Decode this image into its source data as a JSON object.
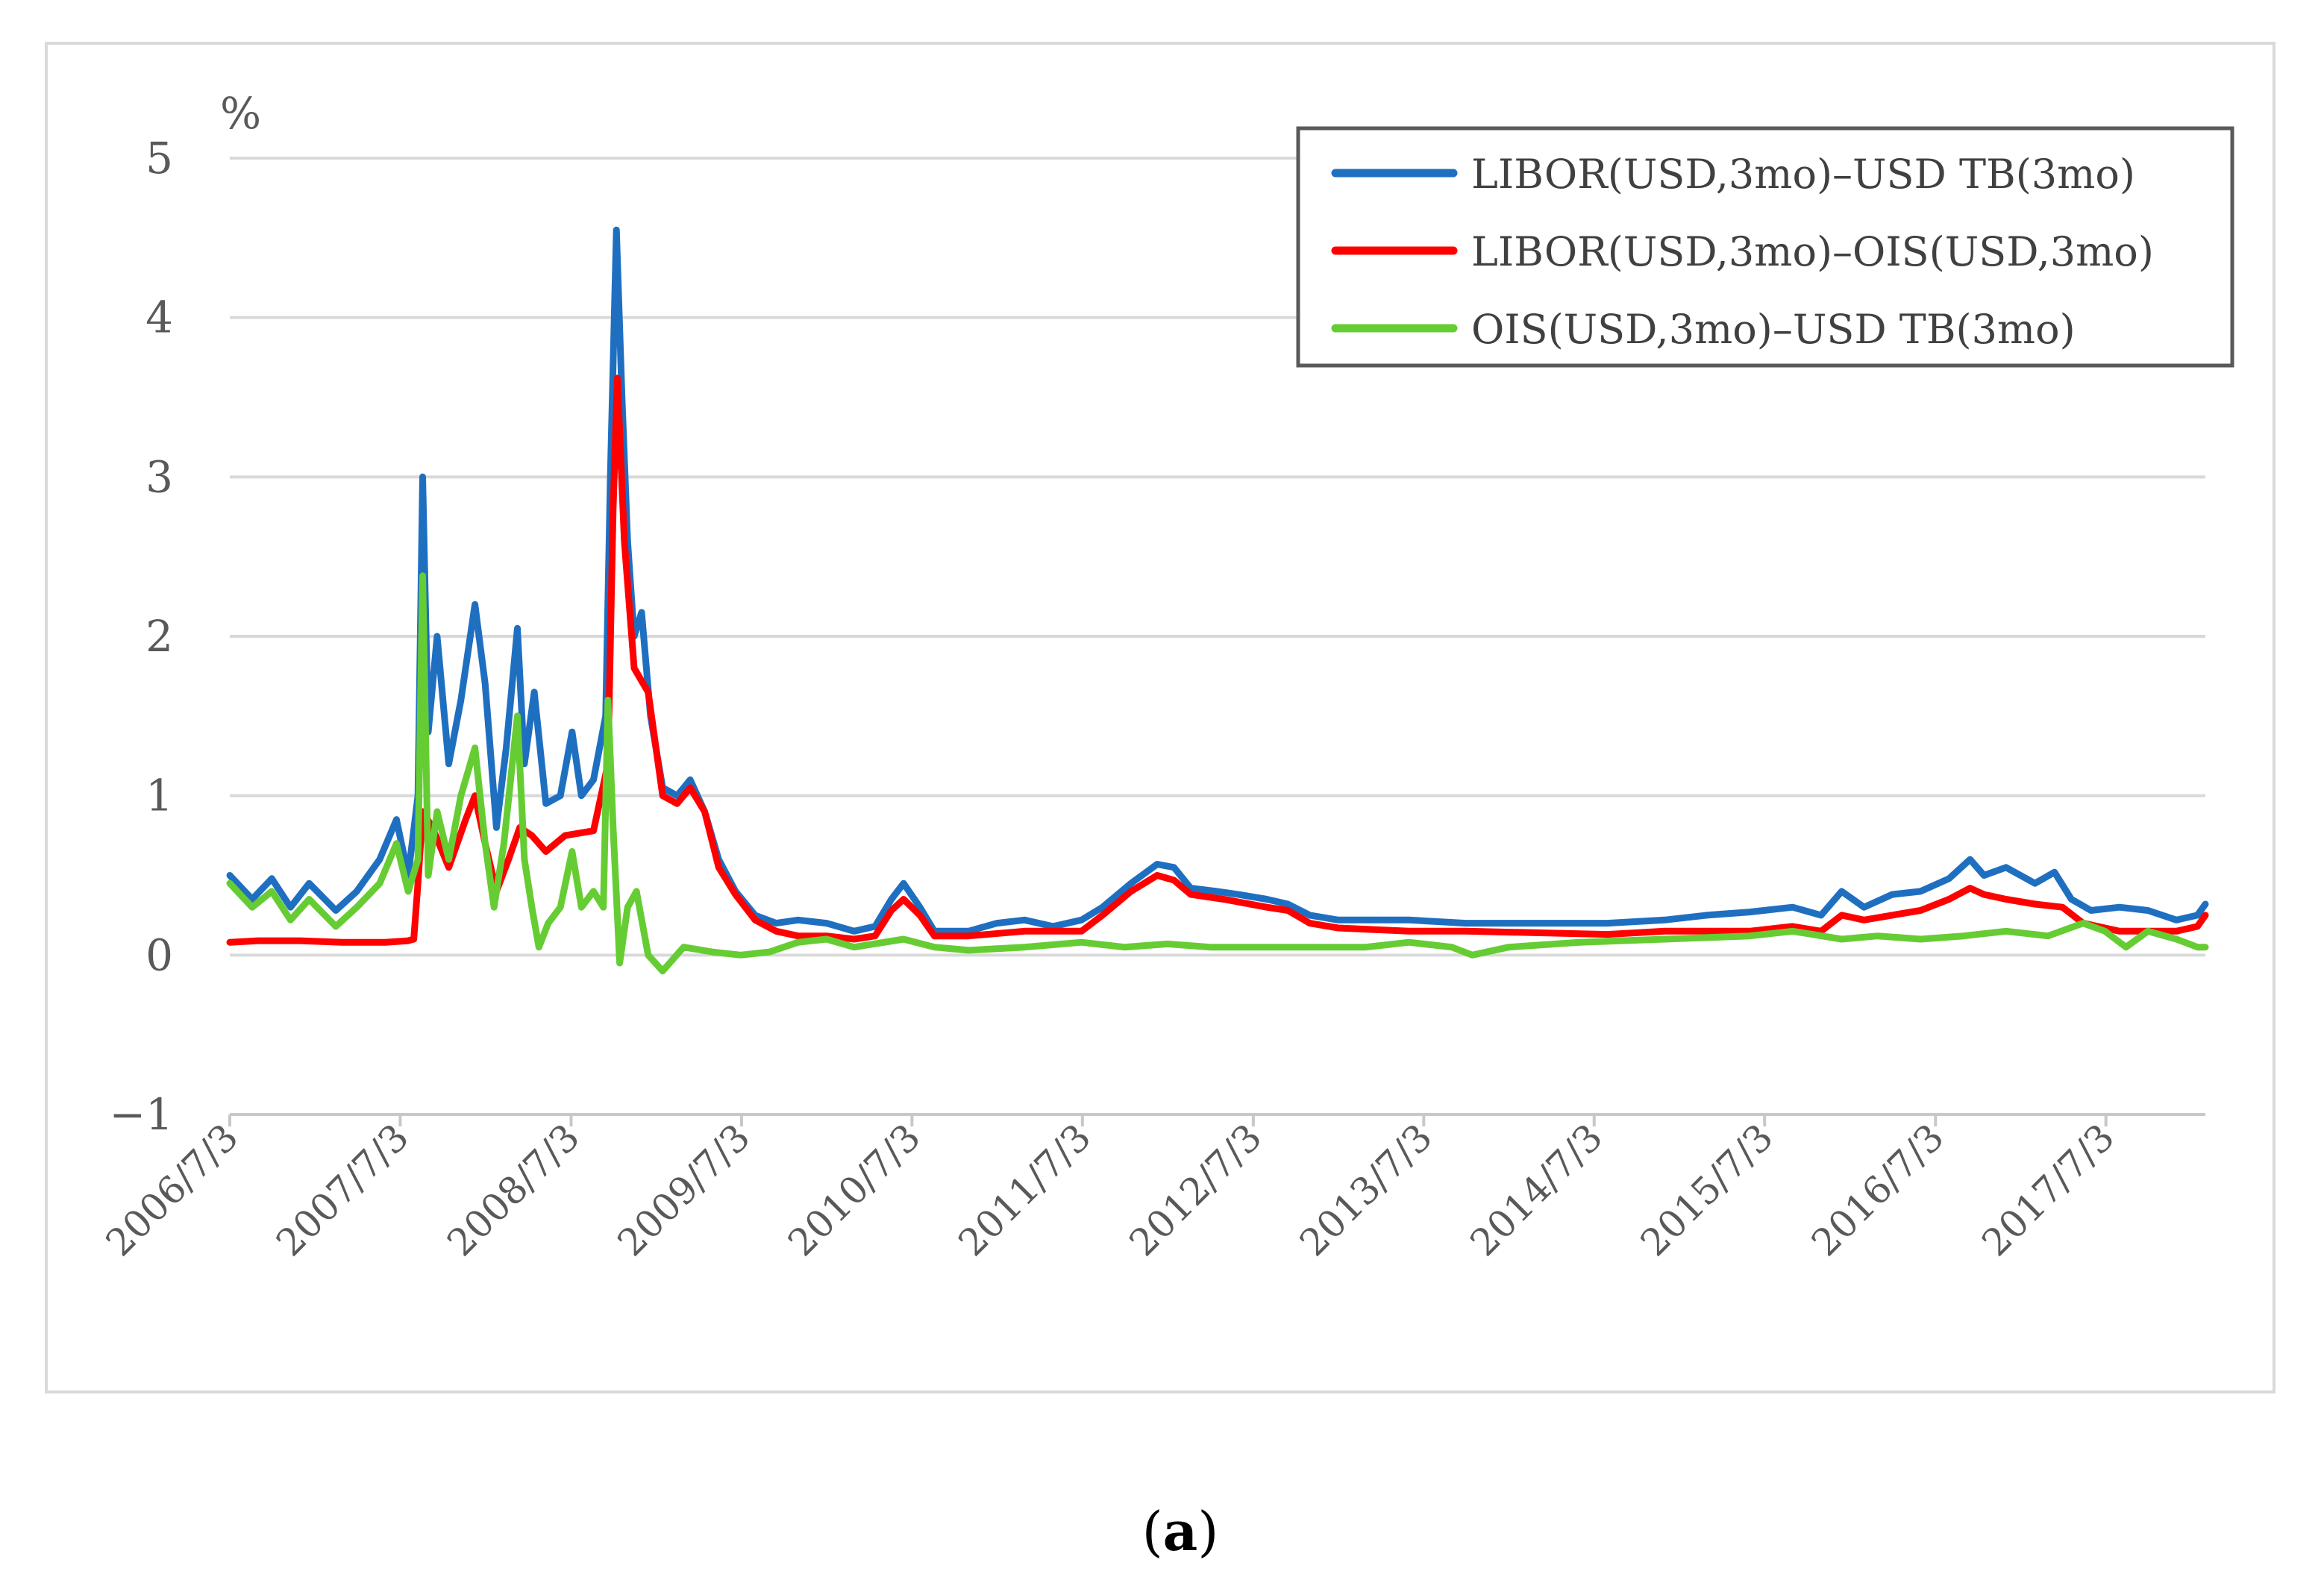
{
  "caption": {
    "open": "(",
    "letter": "a",
    "close": ")"
  },
  "chart_data": {
    "type": "line",
    "ylabel": "%",
    "ylim": [
      -1,
      5
    ],
    "yticks": [
      "5",
      "4",
      "3",
      "2",
      "1",
      "0",
      "−1"
    ],
    "xticks": [
      "2006/7/3",
      "2007/7/3",
      "2008/7/3",
      "2009/7/3",
      "2010/7/3",
      "2011/7/3",
      "2012/7/3",
      "2013/7/3",
      "2014/7/3",
      "2015/7/3",
      "2016/7/3",
      "2017/7/3"
    ],
    "xrange": [
      "2006/7/3",
      "2018/2/1"
    ],
    "grid": true,
    "legend_position": "top-right",
    "series": [
      {
        "name": "LIBOR(USD,3mo)–USD TB(3mo)",
        "color": "#1f6fc1",
        "points": [
          [
            "2006/7/3",
            0.5
          ],
          [
            "2006/8/20",
            0.35
          ],
          [
            "2006/10/1",
            0.48
          ],
          [
            "2006/11/10",
            0.3
          ],
          [
            "2006/12/20",
            0.45
          ],
          [
            "2007/2/15",
            0.28
          ],
          [
            "2007/4/1",
            0.4
          ],
          [
            "2007/5/20",
            0.6
          ],
          [
            "2007/6/25",
            0.85
          ],
          [
            "2007/7/20",
            0.5
          ],
          [
            "2007/8/10",
            1.0
          ],
          [
            "2007/8/20",
            3.0
          ],
          [
            "2007/9/1",
            1.4
          ],
          [
            "2007/9/20",
            2.0
          ],
          [
            "2007/10/15",
            1.2
          ],
          [
            "2007/11/10",
            1.6
          ],
          [
            "2007/12/10",
            2.2
          ],
          [
            "2008/1/1",
            1.7
          ],
          [
            "2008/1/25",
            0.8
          ],
          [
            "2008/2/15",
            1.3
          ],
          [
            "2008/3/10",
            2.05
          ],
          [
            "2008/3/25",
            1.2
          ],
          [
            "2008/4/15",
            1.65
          ],
          [
            "2008/5/10",
            0.95
          ],
          [
            "2008/6/10",
            1.0
          ],
          [
            "2008/7/5",
            1.4
          ],
          [
            "2008/7/25",
            1.0
          ],
          [
            "2008/8/20",
            1.1
          ],
          [
            "2008/9/15",
            1.5
          ],
          [
            "2008/9/25",
            3.0
          ],
          [
            "2008/10/8",
            4.55
          ],
          [
            "2008/10/20",
            3.5
          ],
          [
            "2008/11/1",
            2.6
          ],
          [
            "2008/11/15",
            2.0
          ],
          [
            "2008/12/1",
            2.15
          ],
          [
            "2008/12/20",
            1.5
          ],
          [
            "2009/1/15",
            1.05
          ],
          [
            "2009/2/15",
            1.0
          ],
          [
            "2009/3/15",
            1.1
          ],
          [
            "2009/4/15",
            0.9
          ],
          [
            "2009/5/15",
            0.6
          ],
          [
            "2009/6/20",
            0.4
          ],
          [
            "2009/8/1",
            0.25
          ],
          [
            "2009/9/15",
            0.2
          ],
          [
            "2009/11/1",
            0.22
          ],
          [
            "2010/1/1",
            0.2
          ],
          [
            "2010/3/1",
            0.15
          ],
          [
            "2010/4/15",
            0.18
          ],
          [
            "2010/5/20",
            0.35
          ],
          [
            "2010/6/15",
            0.45
          ],
          [
            "2010/7/20",
            0.3
          ],
          [
            "2010/8/20",
            0.15
          ],
          [
            "2010/11/1",
            0.15
          ],
          [
            "2011/1/1",
            0.2
          ],
          [
            "2011/3/1",
            0.22
          ],
          [
            "2011/5/1",
            0.18
          ],
          [
            "2011/7/1",
            0.22
          ],
          [
            "2011/8/15",
            0.3
          ],
          [
            "2011/10/15",
            0.45
          ],
          [
            "2011/12/10",
            0.57
          ],
          [
            "2012/1/15",
            0.55
          ],
          [
            "2012/2/20",
            0.42
          ],
          [
            "2012/4/15",
            0.4
          ],
          [
            "2012/6/1",
            0.38
          ],
          [
            "2012/8/1",
            0.35
          ],
          [
            "2012/9/15",
            0.32
          ],
          [
            "2012/11/1",
            0.25
          ],
          [
            "2013/1/1",
            0.22
          ],
          [
            "2013/3/1",
            0.22
          ],
          [
            "2013/6/1",
            0.22
          ],
          [
            "2013/10/1",
            0.2
          ],
          [
            "2014/3/1",
            0.2
          ],
          [
            "2014/8/1",
            0.2
          ],
          [
            "2014/12/1",
            0.22
          ],
          [
            "2015/3/1",
            0.25
          ],
          [
            "2015/6/1",
            0.27
          ],
          [
            "2015/9/1",
            0.3
          ],
          [
            "2015/11/1",
            0.25
          ],
          [
            "2015/12/15",
            0.4
          ],
          [
            "2016/2/1",
            0.3
          ],
          [
            "2016/4/1",
            0.38
          ],
          [
            "2016/6/1",
            0.4
          ],
          [
            "2016/8/1",
            0.48
          ],
          [
            "2016/9/15",
            0.6
          ],
          [
            "2016/10/15",
            0.5
          ],
          [
            "2016/12/1",
            0.55
          ],
          [
            "2017/2/1",
            0.45
          ],
          [
            "2017/3/15",
            0.52
          ],
          [
            "2017/4/20",
            0.35
          ],
          [
            "2017/6/1",
            0.28
          ],
          [
            "2017/8/1",
            0.3
          ],
          [
            "2017/10/1",
            0.28
          ],
          [
            "2017/12/1",
            0.22
          ],
          [
            "2018/1/15",
            0.25
          ],
          [
            "2018/2/1",
            0.32
          ]
        ]
      },
      {
        "name": "LIBOR(USD,3mo)–OIS(USD,3mo)",
        "color": "#ff0000",
        "points": [
          [
            "2006/7/3",
            0.08
          ],
          [
            "2006/9/1",
            0.09
          ],
          [
            "2006/12/1",
            0.09
          ],
          [
            "2007/3/1",
            0.08
          ],
          [
            "2007/6/1",
            0.08
          ],
          [
            "2007/7/20",
            0.09
          ],
          [
            "2007/8/1",
            0.1
          ],
          [
            "2007/8/10",
            0.45
          ],
          [
            "2007/8/20",
            0.9
          ],
          [
            "2007/9/10",
            0.8
          ],
          [
            "2007/10/15",
            0.55
          ],
          [
            "2007/11/20",
            0.85
          ],
          [
            "2007/12/10",
            1.0
          ],
          [
            "2008/1/1",
            0.7
          ],
          [
            "2008/1/25",
            0.4
          ],
          [
            "2008/2/20",
            0.6
          ],
          [
            "2008/3/15",
            0.8
          ],
          [
            "2008/4/10",
            0.75
          ],
          [
            "2008/5/10",
            0.65
          ],
          [
            "2008/6/20",
            0.75
          ],
          [
            "2008/8/20",
            0.78
          ],
          [
            "2008/9/20",
            1.2
          ],
          [
            "2008/10/1",
            2.8
          ],
          [
            "2008/10/10",
            3.62
          ],
          [
            "2008/10/25",
            2.6
          ],
          [
            "2008/11/15",
            1.8
          ],
          [
            "2008/12/15",
            1.65
          ],
          [
            "2009/1/15",
            1.0
          ],
          [
            "2009/2/15",
            0.95
          ],
          [
            "2009/3/15",
            1.05
          ],
          [
            "2009/4/15",
            0.9
          ],
          [
            "2009/5/15",
            0.55
          ],
          [
            "2009/6/20",
            0.38
          ],
          [
            "2009/8/1",
            0.22
          ],
          [
            "2009/9/15",
            0.15
          ],
          [
            "2009/11/1",
            0.12
          ],
          [
            "2010/1/1",
            0.12
          ],
          [
            "2010/3/1",
            0.1
          ],
          [
            "2010/4/15",
            0.12
          ],
          [
            "2010/5/20",
            0.28
          ],
          [
            "2010/6/15",
            0.35
          ],
          [
            "2010/7/20",
            0.25
          ],
          [
            "2010/8/20",
            0.12
          ],
          [
            "2010/11/1",
            0.12
          ],
          [
            "2011/3/1",
            0.15
          ],
          [
            "2011/7/1",
            0.15
          ],
          [
            "2011/8/15",
            0.25
          ],
          [
            "2011/10/15",
            0.4
          ],
          [
            "2011/12/10",
            0.5
          ],
          [
            "2012/1/15",
            0.47
          ],
          [
            "2012/2/20",
            0.38
          ],
          [
            "2012/5/1",
            0.35
          ],
          [
            "2012/8/1",
            0.3
          ],
          [
            "2012/9/15",
            0.28
          ],
          [
            "2012/11/1",
            0.2
          ],
          [
            "2013/1/1",
            0.17
          ],
          [
            "2013/6/1",
            0.15
          ],
          [
            "2013/10/1",
            0.15
          ],
          [
            "2014/3/1",
            0.14
          ],
          [
            "2014/8/1",
            0.13
          ],
          [
            "2014/12/1",
            0.15
          ],
          [
            "2015/6/1",
            0.15
          ],
          [
            "2015/9/1",
            0.18
          ],
          [
            "2015/11/1",
            0.15
          ],
          [
            "2015/12/15",
            0.25
          ],
          [
            "2016/2/1",
            0.22
          ],
          [
            "2016/4/1",
            0.25
          ],
          [
            "2016/6/1",
            0.28
          ],
          [
            "2016/8/1",
            0.35
          ],
          [
            "2016/9/15",
            0.42
          ],
          [
            "2016/10/15",
            0.38
          ],
          [
            "2016/12/1",
            0.35
          ],
          [
            "2017/2/1",
            0.32
          ],
          [
            "2017/4/1",
            0.3
          ],
          [
            "2017/5/15",
            0.2
          ],
          [
            "2017/8/1",
            0.15
          ],
          [
            "2017/10/1",
            0.15
          ],
          [
            "2017/12/1",
            0.15
          ],
          [
            "2018/1/15",
            0.18
          ],
          [
            "2018/2/1",
            0.25
          ]
        ]
      },
      {
        "name": "OIS(USD,3mo)–USD TB(3mo)",
        "color": "#66cc33",
        "points": [
          [
            "2006/7/3",
            0.45
          ],
          [
            "2006/8/20",
            0.3
          ],
          [
            "2006/10/1",
            0.4
          ],
          [
            "2006/11/10",
            0.22
          ],
          [
            "2006/12/20",
            0.35
          ],
          [
            "2007/2/15",
            0.18
          ],
          [
            "2007/4/1",
            0.3
          ],
          [
            "2007/5/20",
            0.45
          ],
          [
            "2007/6/25",
            0.7
          ],
          [
            "2007/7/20",
            0.4
          ],
          [
            "2007/8/10",
            0.6
          ],
          [
            "2007/8/20",
            2.38
          ],
          [
            "2007/9/1",
            0.5
          ],
          [
            "2007/9/20",
            0.9
          ],
          [
            "2007/10/15",
            0.6
          ],
          [
            "2007/11/10",
            1.0
          ],
          [
            "2007/12/10",
            1.3
          ],
          [
            "2008/1/1",
            0.7
          ],
          [
            "2008/1/20",
            0.3
          ],
          [
            "2008/2/10",
            0.7
          ],
          [
            "2008/3/10",
            1.5
          ],
          [
            "2008/3/25",
            0.6
          ],
          [
            "2008/4/10",
            0.3
          ],
          [
            "2008/4/25",
            0.05
          ],
          [
            "2008/5/15",
            0.2
          ],
          [
            "2008/6/10",
            0.3
          ],
          [
            "2008/7/5",
            0.65
          ],
          [
            "2008/7/25",
            0.3
          ],
          [
            "2008/8/20",
            0.4
          ],
          [
            "2008/9/10",
            0.3
          ],
          [
            "2008/9/20",
            1.6
          ],
          [
            "2008/10/1",
            0.8
          ],
          [
            "2008/10/15",
            -0.05
          ],
          [
            "2008/11/1",
            0.3
          ],
          [
            "2008/11/20",
            0.4
          ],
          [
            "2008/12/15",
            0.0
          ],
          [
            "2009/1/15",
            -0.1
          ],
          [
            "2009/3/1",
            0.05
          ],
          [
            "2009/5/1",
            0.02
          ],
          [
            "2009/7/1",
            0.0
          ],
          [
            "2009/9/1",
            0.02
          ],
          [
            "2009/11/1",
            0.08
          ],
          [
            "2010/1/1",
            0.1
          ],
          [
            "2010/3/1",
            0.05
          ],
          [
            "2010/6/15",
            0.1
          ],
          [
            "2010/8/20",
            0.05
          ],
          [
            "2010/11/1",
            0.03
          ],
          [
            "2011/3/1",
            0.05
          ],
          [
            "2011/7/1",
            0.08
          ],
          [
            "2011/10/1",
            0.05
          ],
          [
            "2012/1/1",
            0.07
          ],
          [
            "2012/4/1",
            0.05
          ],
          [
            "2012/8/1",
            0.05
          ],
          [
            "2012/11/1",
            0.05
          ],
          [
            "2013/3/1",
            0.05
          ],
          [
            "2013/6/1",
            0.08
          ],
          [
            "2013/9/1",
            0.05
          ],
          [
            "2013/10/15",
            0.0
          ],
          [
            "2014/1/1",
            0.05
          ],
          [
            "2014/6/1",
            0.08
          ],
          [
            "2014/12/1",
            0.1
          ],
          [
            "2015/6/1",
            0.12
          ],
          [
            "2015/9/1",
            0.15
          ],
          [
            "2015/12/15",
            0.1
          ],
          [
            "2016/3/1",
            0.12
          ],
          [
            "2016/6/1",
            0.1
          ],
          [
            "2016/9/1",
            0.12
          ],
          [
            "2016/12/1",
            0.15
          ],
          [
            "2017/3/1",
            0.12
          ],
          [
            "2017/5/15",
            0.2
          ],
          [
            "2017/7/1",
            0.15
          ],
          [
            "2017/8/15",
            0.05
          ],
          [
            "2017/10/1",
            0.15
          ],
          [
            "2017/12/1",
            0.1
          ],
          [
            "2018/1/15",
            0.05
          ],
          [
            "2018/2/1",
            0.05
          ]
        ]
      }
    ]
  }
}
